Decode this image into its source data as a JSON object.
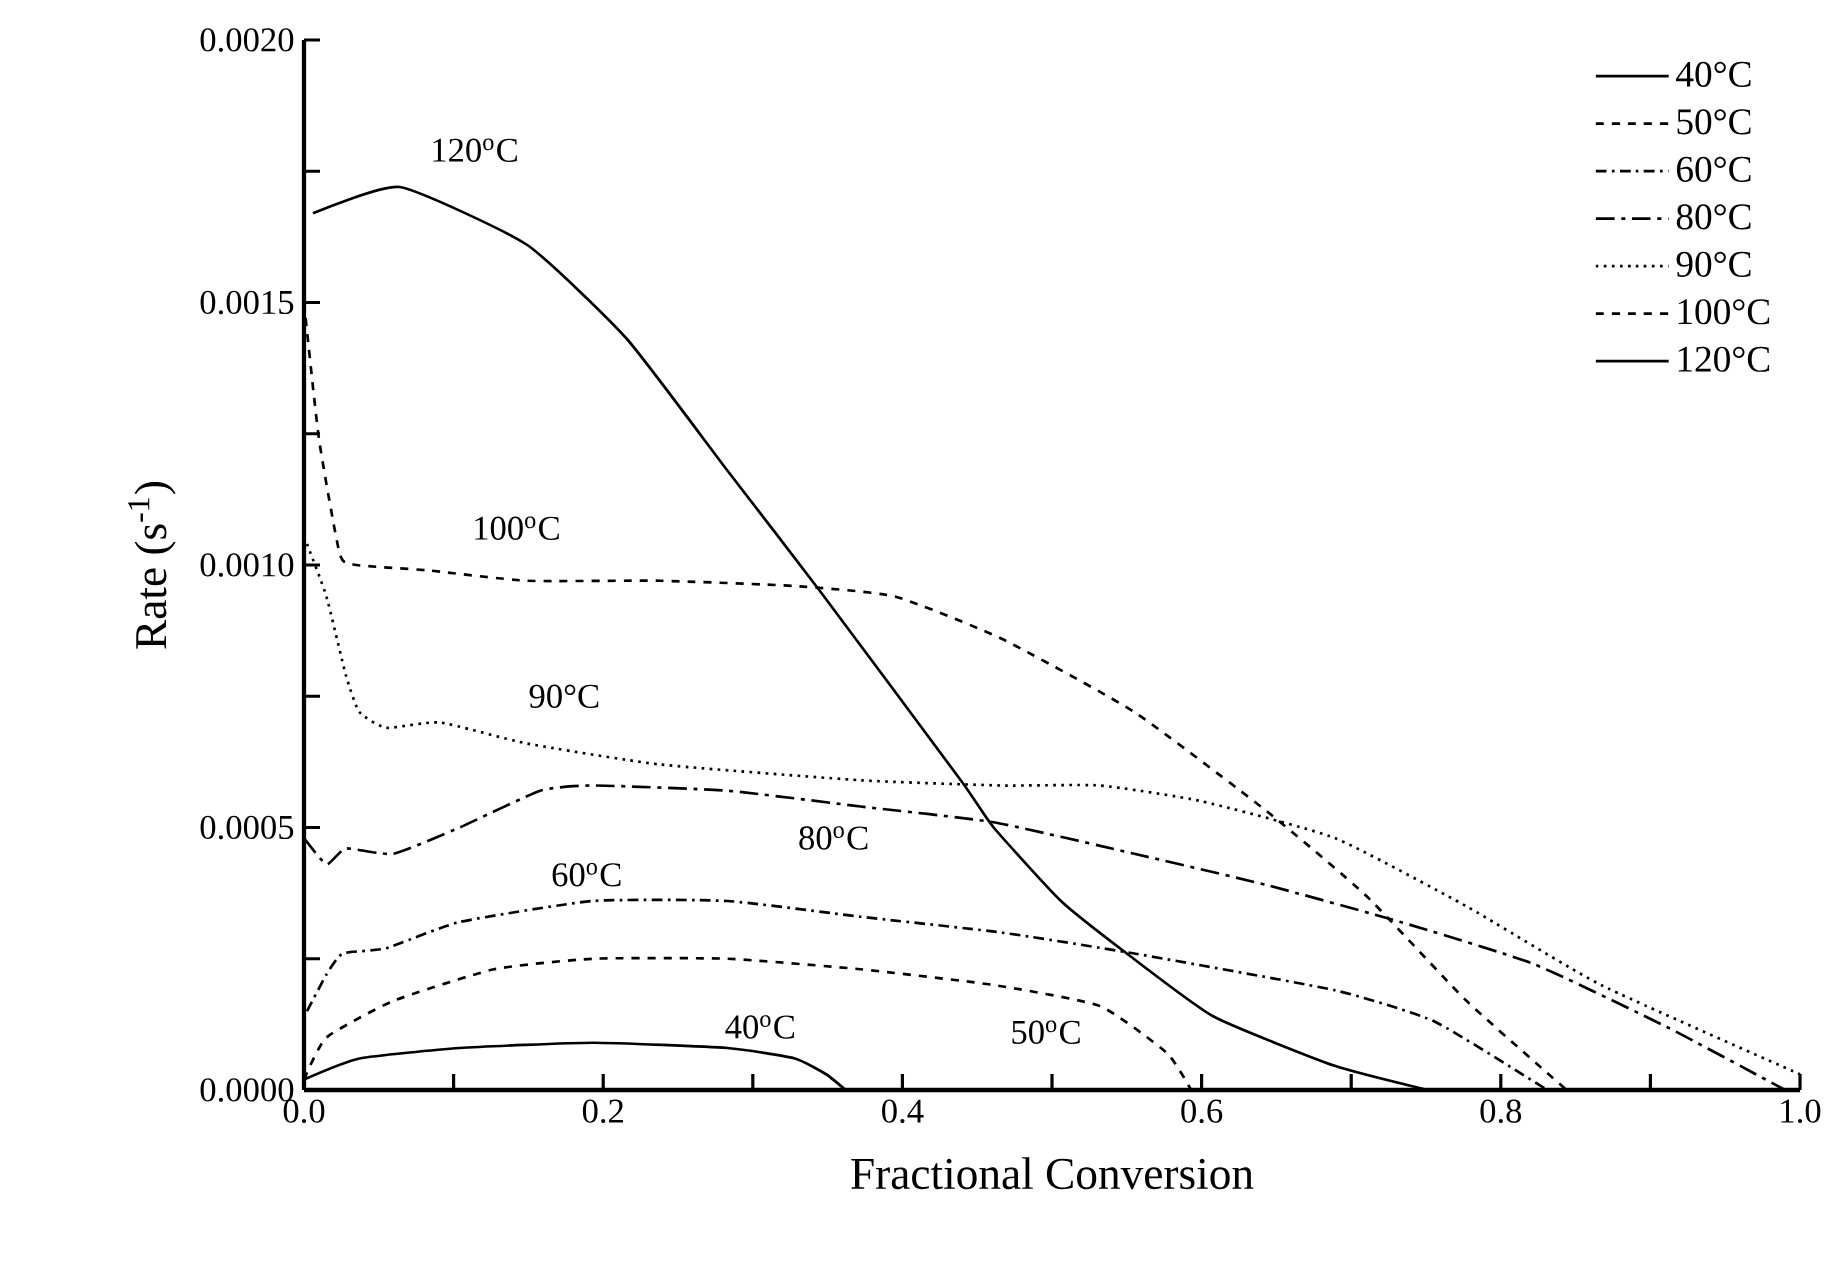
{
  "chart_data": {
    "type": "line",
    "xlabel": "Fractional Conversion",
    "ylabel": "Rate (s$^{-1}$)",
    "xlim": [
      0,
      1
    ],
    "ylim": [
      0,
      0.002
    ],
    "xticks": [
      {
        "value": 0,
        "label": "0.0"
      },
      {
        "value": 0.1,
        "label": null
      },
      {
        "value": 0.2,
        "label": "0.2"
      },
      {
        "value": 0.3,
        "label": null
      },
      {
        "value": 0.4,
        "label": "0.4"
      },
      {
        "value": 0.5,
        "label": null
      },
      {
        "value": 0.6,
        "label": "0.6"
      },
      {
        "value": 0.7,
        "label": null
      },
      {
        "value": 0.8,
        "label": "0.8"
      },
      {
        "value": 0.9,
        "label": null
      },
      {
        "value": 1,
        "label": "1.0"
      }
    ],
    "yticks": [
      {
        "value": 0,
        "label": "0.0000"
      },
      {
        "value": 0.00025,
        "label": null
      },
      {
        "value": 0.0005,
        "label": "0.0005"
      },
      {
        "value": 0.00075,
        "label": null
      },
      {
        "value": 0.001,
        "label": "0.0010"
      },
      {
        "value": 0.00125,
        "label": null
      },
      {
        "value": 0.0015,
        "label": "0.0015"
      },
      {
        "value": 0.00175,
        "label": null
      },
      {
        "value": 0.002,
        "label": "0.0020"
      }
    ],
    "legend": "top right",
    "grid": false,
    "marker": "none",
    "series": [
      {
        "name": "40°C",
        "color": "#000000",
        "line_style": "solid",
        "x": [
          0,
          0.037,
          0.104,
          0.193,
          0.283,
          0.328,
          0.349,
          0.362
        ],
        "values": [
          2e-05,
          6e-05,
          8e-05,
          9e-05,
          8e-05,
          6e-05,
          3e-05,
          0
        ]
      },
      {
        "name": "50°C",
        "color": "#000000",
        "line_style": "dashed",
        "x": [
          0,
          0.015,
          0.06,
          0.127,
          0.193,
          0.283,
          0.372,
          0.461,
          0.532,
          0.577,
          0.593
        ],
        "values": [
          2e-05,
          0.0001,
          0.00017,
          0.00023,
          0.00025,
          0.00025,
          0.00023,
          0.0002,
          0.00016,
          7e-05,
          0
        ]
      },
      {
        "name": "60°C",
        "color": "#000000",
        "line_style": "dashdotted",
        "x": [
          0.002,
          0.015,
          0.026,
          0.055,
          0.104,
          0.193,
          0.283,
          0.372,
          0.466,
          0.555,
          0.689,
          0.756,
          0.831
        ],
        "values": [
          0.00015,
          0.00022,
          0.00026,
          0.00027,
          0.00032,
          0.00036,
          0.00036,
          0.00033,
          0.0003,
          0.00026,
          0.00019,
          0.00013,
          0
        ]
      },
      {
        "name": "80°C",
        "color": "#000000",
        "line_style": "longdashdotted",
        "x": [
          0,
          0.015,
          0.028,
          0.06,
          0.104,
          0.158,
          0.193,
          0.283,
          0.372,
          0.461,
          0.555,
          0.644,
          0.733,
          0.822,
          0.911,
          0.99
        ],
        "values": [
          0.00048,
          0.00043,
          0.00046,
          0.00045,
          0.0005,
          0.00057,
          0.00058,
          0.00057,
          0.00054,
          0.00051,
          0.00045,
          0.00039,
          0.00032,
          0.00024,
          0.00012,
          0
        ]
      },
      {
        "name": "90°C",
        "color": "#000000",
        "line_style": "dotted",
        "x": [
          0.002,
          0.015,
          0.028,
          0.037,
          0.055,
          0.091,
          0.149,
          0.238,
          0.372,
          0.466,
          0.532,
          0.6,
          0.689,
          0.777,
          0.867,
          1.0
        ],
        "values": [
          0.00104,
          0.00094,
          0.00079,
          0.00072,
          0.00069,
          0.0007,
          0.00066,
          0.00062,
          0.00059,
          0.00058,
          0.00058,
          0.00055,
          0.00048,
          0.00035,
          0.0002,
          3e-05
        ]
      },
      {
        "name": "100°C",
        "color": "#000000",
        "line_style": "dashed",
        "x": [
          0,
          0.01,
          0.024,
          0.035,
          0.082,
          0.149,
          0.238,
          0.328,
          0.395,
          0.466,
          0.555,
          0.644,
          0.71,
          0.777,
          0.844
        ],
        "values": [
          0.0015,
          0.00124,
          0.00102,
          0.001,
          0.00099,
          0.00097,
          0.00097,
          0.00096,
          0.00094,
          0.00086,
          0.00072,
          0.00053,
          0.00037,
          0.00017,
          0
        ]
      },
      {
        "name": "120°C",
        "color": "#000000",
        "line_style": "solid",
        "x": [
          0.006,
          0.064,
          0.149,
          0.216,
          0.283,
          0.345,
          0.439,
          0.461,
          0.506,
          0.55,
          0.608,
          0.689,
          0.751
        ],
        "values": [
          0.00167,
          0.00172,
          0.00161,
          0.00143,
          0.00118,
          0.00095,
          0.00059,
          0.0005,
          0.00036,
          0.00026,
          0.00014,
          4.6e-05,
          0
        ]
      }
    ],
    "annotations": [
      "120$^{o}$C",
      "100$^{o}$C",
      "90°C",
      "80$^{o}$C",
      "60$^{o}$C",
      "40$^{o}$C",
      "50$^{o}$C"
    ]
  }
}
